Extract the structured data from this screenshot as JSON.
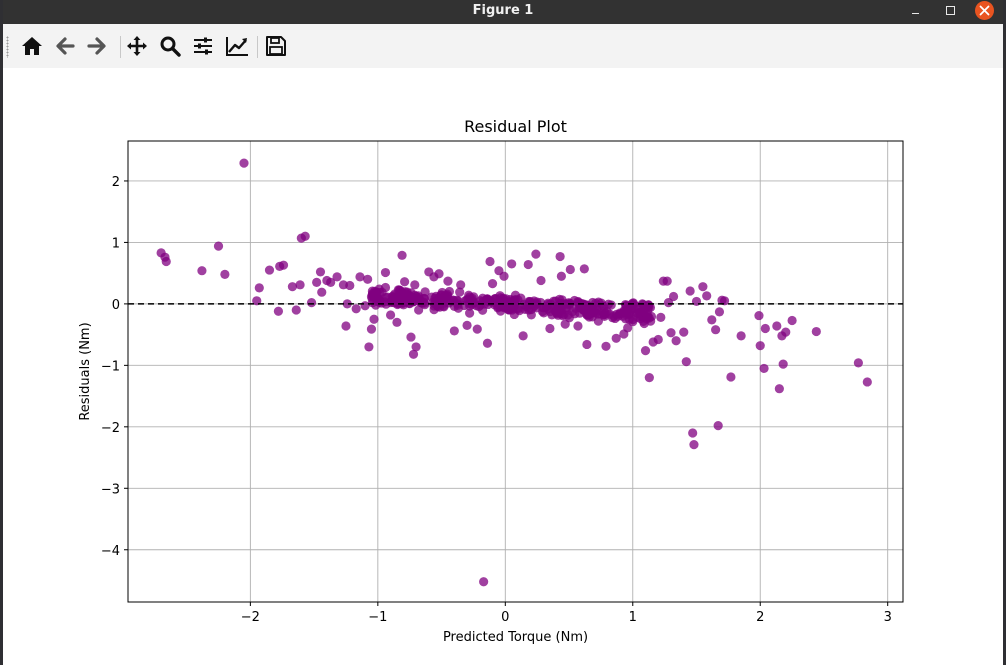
{
  "window": {
    "title": "Figure 1"
  },
  "toolbar": {
    "buttons": [
      {
        "icon": "home-icon"
      },
      {
        "icon": "back-arrow-icon"
      },
      {
        "icon": "forward-arrow-icon"
      },
      {
        "icon": "pan-move-icon"
      },
      {
        "icon": "zoom-magnifier-icon"
      },
      {
        "icon": "configure-subplots-icon"
      },
      {
        "icon": "edit-axis-icon"
      },
      {
        "icon": "save-icon"
      }
    ]
  },
  "chart_data": {
    "type": "scatter",
    "title": "Residual Plot",
    "xlabel": "Predicted Torque (Nm)",
    "ylabel": "Residuals (Nm)",
    "xlim": [
      -2.96,
      3.12
    ],
    "ylim": [
      -4.85,
      2.65
    ],
    "xticks": [
      -2,
      -1,
      0,
      1,
      2,
      3
    ],
    "xtick_labels": [
      "−2",
      "−1",
      "0",
      "1",
      "2",
      "3"
    ],
    "yticks": [
      -4,
      -3,
      -2,
      -1,
      0,
      1,
      2
    ],
    "ytick_labels": [
      "−4",
      "−3",
      "−2",
      "−1",
      "0",
      "1",
      "2"
    ],
    "grid": true,
    "marker_color": "#800080",
    "marker_alpha": 0.75,
    "reference_line": {
      "y": 0,
      "style": "dashed",
      "color": "#000000"
    },
    "points": [
      [
        -2.7,
        0.83
      ],
      [
        -2.67,
        0.76
      ],
      [
        -2.66,
        0.69
      ],
      [
        -2.38,
        0.54
      ],
      [
        -2.25,
        0.94
      ],
      [
        -2.2,
        0.48
      ],
      [
        -2.05,
        2.29
      ],
      [
        -1.95,
        0.05
      ],
      [
        -1.93,
        0.26
      ],
      [
        -1.85,
        0.55
      ],
      [
        -1.78,
        -0.12
      ],
      [
        -1.77,
        0.61
      ],
      [
        -1.74,
        0.63
      ],
      [
        -1.67,
        0.28
      ],
      [
        -1.64,
        -0.1
      ],
      [
        -1.61,
        0.31
      ],
      [
        -1.6,
        1.07
      ],
      [
        -1.57,
        1.1
      ],
      [
        -1.52,
        0.02
      ],
      [
        -1.48,
        0.35
      ],
      [
        -1.45,
        0.52
      ],
      [
        -1.44,
        0.19
      ],
      [
        -1.4,
        0.38
      ],
      [
        -1.37,
        0.35
      ],
      [
        -1.32,
        0.44
      ],
      [
        -1.27,
        0.31
      ],
      [
        -1.25,
        -0.36
      ],
      [
        -1.24,
        0.0
      ],
      [
        -1.22,
        0.3
      ],
      [
        -1.17,
        -0.08
      ],
      [
        -1.14,
        0.44
      ],
      [
        -1.1,
        -0.03
      ],
      [
        -1.08,
        0.4
      ],
      [
        -1.07,
        -0.7
      ],
      [
        -1.05,
        -0.41
      ],
      [
        -1.03,
        -0.25
      ],
      [
        -0.99,
        0.24
      ],
      [
        -0.94,
        0.51
      ],
      [
        -0.9,
        -0.18
      ],
      [
        -0.81,
        0.79
      ],
      [
        -0.79,
        0.36
      ],
      [
        -0.74,
        -0.54
      ],
      [
        -0.72,
        -0.82
      ],
      [
        -0.71,
        0.31
      ],
      [
        -0.7,
        -0.7
      ],
      [
        -0.68,
        -0.1
      ],
      [
        -0.6,
        0.52
      ],
      [
        -0.56,
        0.44
      ],
      [
        -0.52,
        0.49
      ],
      [
        -0.45,
        0.37
      ],
      [
        -0.4,
        -0.44
      ],
      [
        -0.35,
        0.31
      ],
      [
        -0.3,
        -0.35
      ],
      [
        -0.22,
        -0.41
      ],
      [
        -0.17,
        -4.52
      ],
      [
        -0.14,
        -0.64
      ],
      [
        -0.12,
        0.69
      ],
      [
        -0.1,
        0.33
      ],
      [
        -0.05,
        0.54
      ],
      [
        -0.01,
        0.45
      ],
      [
        0.05,
        0.65
      ],
      [
        0.14,
        -0.52
      ],
      [
        0.18,
        0.64
      ],
      [
        0.24,
        0.81
      ],
      [
        0.28,
        0.38
      ],
      [
        0.35,
        -0.4
      ],
      [
        0.43,
        0.77
      ],
      [
        0.44,
        0.45
      ],
      [
        0.51,
        0.56
      ],
      [
        0.57,
        -0.36
      ],
      [
        0.62,
        0.57
      ],
      [
        0.64,
        -0.66
      ],
      [
        0.73,
        -0.28
      ],
      [
        0.79,
        -0.69
      ],
      [
        0.87,
        -0.56
      ],
      [
        0.93,
        -0.49
      ],
      [
        0.96,
        -0.39
      ],
      [
        1.0,
        -0.29
      ],
      [
        1.06,
        -0.15
      ],
      [
        1.1,
        -0.76
      ],
      [
        1.13,
        -1.2
      ],
      [
        1.16,
        -0.62
      ],
      [
        1.2,
        -0.58
      ],
      [
        1.24,
        0.37
      ],
      [
        1.27,
        0.37
      ],
      [
        1.3,
        -0.47
      ],
      [
        1.32,
        0.12
      ],
      [
        1.34,
        -0.6
      ],
      [
        1.4,
        -0.46
      ],
      [
        1.42,
        -0.94
      ],
      [
        1.45,
        0.21
      ],
      [
        1.47,
        -2.1
      ],
      [
        1.48,
        -2.29
      ],
      [
        1.5,
        0.04
      ],
      [
        1.58,
        0.13
      ],
      [
        1.62,
        -0.26
      ],
      [
        1.65,
        -0.42
      ],
      [
        1.67,
        -1.98
      ],
      [
        1.68,
        -0.13
      ],
      [
        1.7,
        0.06
      ],
      [
        1.72,
        0.05
      ],
      [
        1.77,
        -1.19
      ],
      [
        1.85,
        -0.52
      ],
      [
        1.99,
        -0.19
      ],
      [
        2.0,
        -0.68
      ],
      [
        2.03,
        -1.05
      ],
      [
        2.04,
        -0.4
      ],
      [
        2.13,
        -0.36
      ],
      [
        2.15,
        -1.38
      ],
      [
        2.17,
        -0.52
      ],
      [
        2.2,
        -0.46
      ],
      [
        2.18,
        -0.98
      ],
      [
        2.25,
        -0.27
      ],
      [
        2.44,
        -0.45
      ],
      [
        2.77,
        -0.96
      ],
      [
        2.84,
        -1.27
      ],
      [
        1.55,
        0.28
      ],
      [
        1.22,
        -0.22
      ],
      [
        1.28,
        0.02
      ],
      [
        1.09,
        -0.32
      ],
      [
        1.14,
        -0.28
      ],
      [
        0.47,
        -0.33
      ],
      [
        -0.85,
        -0.3
      ],
      [
        -0.28,
        -0.15
      ]
    ]
  }
}
